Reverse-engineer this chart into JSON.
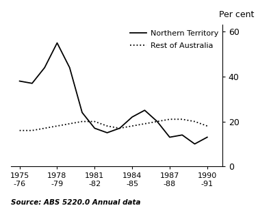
{
  "ylabel_right": "Per cent",
  "source": "Source: ABS 5220.0 Annual data",
  "nt_years": [
    1975,
    1976,
    1977,
    1978,
    1979,
    1980,
    1981,
    1982,
    1983,
    1984,
    1985,
    1986,
    1987,
    1988,
    1989,
    1990
  ],
  "nt_values": [
    38,
    37,
    44,
    55,
    44,
    24,
    17,
    15,
    17,
    22,
    25,
    20,
    13,
    14,
    10,
    13
  ],
  "roa_years": [
    1975,
    1976,
    1977,
    1978,
    1979,
    1980,
    1981,
    1982,
    1983,
    1984,
    1985,
    1986,
    1987,
    1988,
    1989,
    1990
  ],
  "roa_values": [
    16,
    16,
    17,
    18,
    19,
    20,
    20,
    18,
    17,
    18,
    19,
    20,
    21,
    21,
    20,
    18
  ],
  "xlim": [
    1974.3,
    1991.2
  ],
  "ylim": [
    0,
    63
  ],
  "yticks": [
    0,
    20,
    40,
    60
  ],
  "xtick_positions": [
    1975,
    1978,
    1981,
    1984,
    1987,
    1990
  ],
  "xtick_labels": [
    "1975\n-76",
    "1978\n-79",
    "1981\n-82",
    "1984\n-85",
    "1987\n-88",
    "1990\n-91"
  ],
  "legend_nt": "Northern Territory",
  "legend_roa": "Rest of Australia",
  "line_color": "#000000",
  "bg_color": "#ffffff"
}
